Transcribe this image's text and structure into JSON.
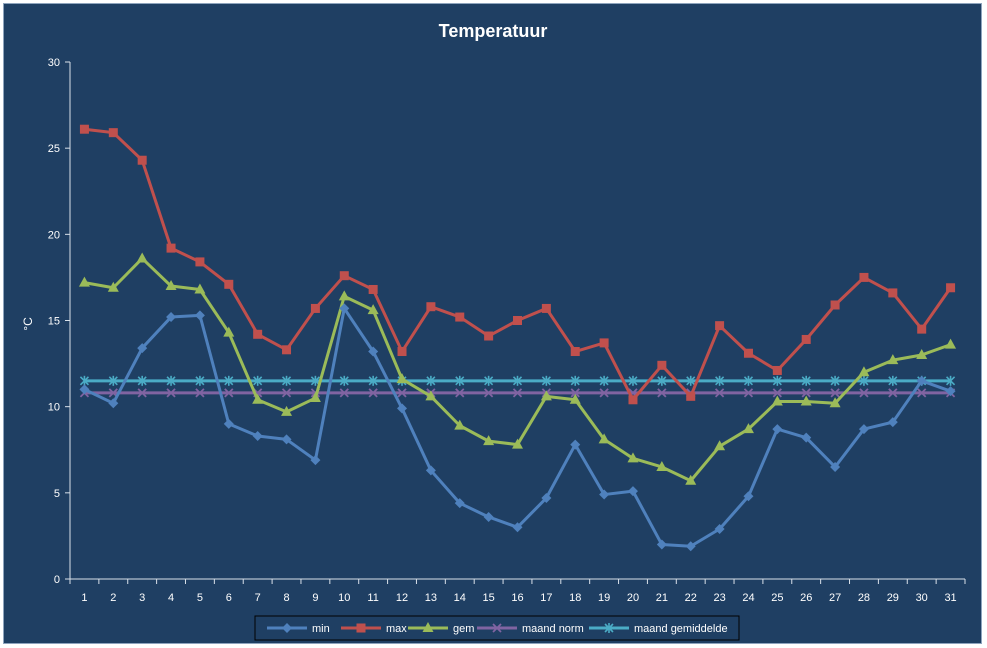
{
  "chart_data": {
    "type": "line",
    "title": "Temperatuur",
    "ylabel": "°C",
    "xlabel": "",
    "ylim": [
      0,
      30
    ],
    "yticks": [
      0,
      5,
      10,
      15,
      20,
      25,
      30
    ],
    "grid": false,
    "legend": "bottom",
    "categories": [
      "1",
      "2",
      "3",
      "4",
      "5",
      "6",
      "7",
      "8",
      "9",
      "10",
      "11",
      "12",
      "13",
      "14",
      "15",
      "16",
      "17",
      "18",
      "19",
      "20",
      "21",
      "22",
      "23",
      "24",
      "25",
      "26",
      "27",
      "28",
      "29",
      "30",
      "31"
    ],
    "series": [
      {
        "name": "min",
        "color": "#4f81bd",
        "marker": "diamond",
        "values": [
          11.0,
          10.2,
          13.4,
          15.2,
          15.3,
          9.0,
          8.3,
          8.1,
          6.9,
          15.7,
          13.2,
          9.9,
          6.3,
          4.4,
          3.6,
          3.0,
          4.7,
          7.8,
          4.9,
          5.1,
          2.0,
          1.9,
          2.9,
          4.8,
          8.7,
          8.2,
          6.5,
          8.7,
          9.1,
          11.5,
          10.9
        ]
      },
      {
        "name": "max",
        "color": "#c0504d",
        "marker": "square",
        "values": [
          26.1,
          25.9,
          24.3,
          19.2,
          18.4,
          17.1,
          14.2,
          13.3,
          15.7,
          17.6,
          16.8,
          13.2,
          15.8,
          15.2,
          14.1,
          15.0,
          15.7,
          13.2,
          13.7,
          10.4,
          12.4,
          10.6,
          14.7,
          13.1,
          12.1,
          13.9,
          15.9,
          17.5,
          16.6,
          14.5,
          16.9
        ]
      },
      {
        "name": "gem",
        "color": "#9bbb59",
        "marker": "triangle",
        "values": [
          17.2,
          16.9,
          18.6,
          17.0,
          16.8,
          14.3,
          10.4,
          9.7,
          10.5,
          16.4,
          15.6,
          11.6,
          10.6,
          8.9,
          8.0,
          7.8,
          10.6,
          10.4,
          8.1,
          7.0,
          6.5,
          5.7,
          7.7,
          8.7,
          10.3,
          10.3,
          10.2,
          12.0,
          12.7,
          13.0,
          13.6
        ]
      },
      {
        "name": "maand norm",
        "color": "#8064a2",
        "marker": "x",
        "values": [
          10.8,
          10.8,
          10.8,
          10.8,
          10.8,
          10.8,
          10.8,
          10.8,
          10.8,
          10.8,
          10.8,
          10.8,
          10.8,
          10.8,
          10.8,
          10.8,
          10.8,
          10.8,
          10.8,
          10.8,
          10.8,
          10.8,
          10.8,
          10.8,
          10.8,
          10.8,
          10.8,
          10.8,
          10.8,
          10.8,
          10.8
        ]
      },
      {
        "name": "maand gemiddelde",
        "color": "#4bacc6",
        "marker": "star",
        "values": [
          11.5,
          11.5,
          11.5,
          11.5,
          11.5,
          11.5,
          11.5,
          11.5,
          11.5,
          11.5,
          11.5,
          11.5,
          11.5,
          11.5,
          11.5,
          11.5,
          11.5,
          11.5,
          11.5,
          11.5,
          11.5,
          11.5,
          11.5,
          11.5,
          11.5,
          11.5,
          11.5,
          11.5,
          11.5,
          11.5,
          11.5
        ]
      }
    ]
  }
}
